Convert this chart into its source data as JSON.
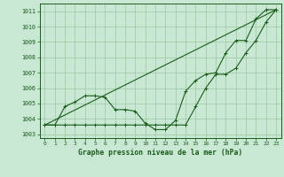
{
  "title": "Graphe pression niveau de la mer (hPa)",
  "background_color": "#c8e8d4",
  "grid_color": "#9dc8a0",
  "line_color": "#1a5c1a",
  "x_ticks": [
    0,
    1,
    2,
    3,
    4,
    5,
    6,
    7,
    8,
    9,
    10,
    11,
    12,
    13,
    14,
    15,
    16,
    17,
    18,
    19,
    20,
    21,
    22,
    23
  ],
  "ylim": [
    1002.75,
    1011.5
  ],
  "yticks": [
    1003,
    1004,
    1005,
    1006,
    1007,
    1008,
    1009,
    1010,
    1011
  ],
  "series1_x": [
    0,
    1,
    2,
    3,
    4,
    5,
    6,
    7,
    8,
    9,
    10,
    11,
    12,
    13,
    14,
    15,
    16,
    17,
    18,
    19,
    20,
    21,
    22,
    23
  ],
  "series1_y": [
    1003.6,
    1003.6,
    1003.6,
    1003.6,
    1003.6,
    1003.6,
    1003.6,
    1003.6,
    1003.6,
    1003.6,
    1003.6,
    1003.6,
    1003.6,
    1003.6,
    1003.6,
    1004.8,
    1006.0,
    1006.9,
    1006.9,
    1007.3,
    1008.3,
    1009.1,
    1010.3,
    1011.1
  ],
  "series2_x": [
    0,
    1,
    2,
    3,
    4,
    5,
    6,
    7,
    8,
    9,
    10,
    11,
    12,
    13,
    14,
    15,
    16,
    17,
    18,
    19,
    20,
    21,
    22,
    23
  ],
  "series2_y": [
    1003.6,
    1003.6,
    1004.8,
    1005.1,
    1005.5,
    1005.5,
    1005.4,
    1004.6,
    1004.6,
    1004.5,
    1003.7,
    1003.3,
    1003.3,
    1003.9,
    1005.8,
    1006.5,
    1006.9,
    1007.0,
    1008.3,
    1009.1,
    1009.1,
    1010.5,
    1011.1,
    1011.1
  ],
  "series3_x": [
    0,
    23
  ],
  "series3_y": [
    1003.6,
    1011.1
  ]
}
